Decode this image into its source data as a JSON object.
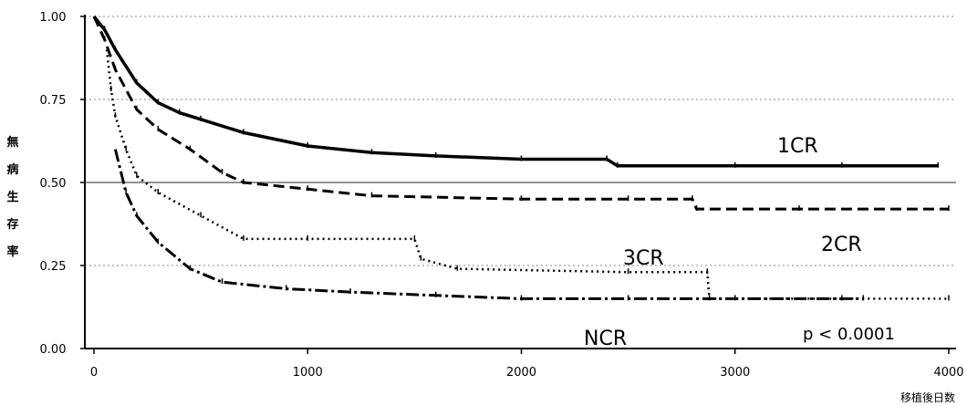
{
  "chart_data": {
    "type": "line",
    "ylabel": "無病生存率",
    "xlabel": "移植後日数",
    "xlim": [
      0,
      4000
    ],
    "ylim": [
      0,
      1
    ],
    "x_ticks": [
      "0",
      "1000",
      "2000",
      "3000",
      "4000"
    ],
    "y_ticks": [
      "0.00",
      "0.25",
      "0.50",
      "0.75",
      "1.00"
    ],
    "grid": "horizontal dotted",
    "annotation": "p < 0.0001",
    "series": [
      {
        "name": "1CR",
        "style": "solid",
        "points": [
          [
            0,
            1.0
          ],
          [
            50,
            0.96
          ],
          [
            100,
            0.9
          ],
          [
            200,
            0.8
          ],
          [
            300,
            0.74
          ],
          [
            400,
            0.71
          ],
          [
            500,
            0.69
          ],
          [
            700,
            0.65
          ],
          [
            1000,
            0.61
          ],
          [
            1300,
            0.59
          ],
          [
            1600,
            0.58
          ],
          [
            2000,
            0.57
          ],
          [
            2400,
            0.57
          ],
          [
            2450,
            0.55
          ],
          [
            3000,
            0.55
          ],
          [
            3500,
            0.55
          ],
          [
            3950,
            0.55
          ]
        ]
      },
      {
        "name": "2CR",
        "style": "dashed",
        "points": [
          [
            0,
            1.0
          ],
          [
            50,
            0.93
          ],
          [
            100,
            0.84
          ],
          [
            200,
            0.72
          ],
          [
            300,
            0.66
          ],
          [
            450,
            0.6
          ],
          [
            600,
            0.53
          ],
          [
            700,
            0.5
          ],
          [
            1000,
            0.48
          ],
          [
            1300,
            0.46
          ],
          [
            2000,
            0.45
          ],
          [
            2500,
            0.45
          ],
          [
            2800,
            0.45
          ],
          [
            2820,
            0.42
          ],
          [
            3300,
            0.42
          ],
          [
            4000,
            0.42
          ]
        ]
      },
      {
        "name": "3CR",
        "style": "dotted",
        "points": [
          [
            60,
            0.9
          ],
          [
            80,
            0.78
          ],
          [
            100,
            0.7
          ],
          [
            150,
            0.6
          ],
          [
            200,
            0.52
          ],
          [
            300,
            0.47
          ],
          [
            500,
            0.4
          ],
          [
            700,
            0.33
          ],
          [
            1000,
            0.33
          ],
          [
            1500,
            0.33
          ],
          [
            1530,
            0.27
          ],
          [
            1700,
            0.24
          ],
          [
            2500,
            0.23
          ],
          [
            2870,
            0.23
          ],
          [
            2880,
            0.15
          ],
          [
            3500,
            0.15
          ],
          [
            4000,
            0.15
          ]
        ]
      },
      {
        "name": "NCR",
        "style": "dash-dot",
        "points": [
          [
            100,
            0.6
          ],
          [
            150,
            0.47
          ],
          [
            200,
            0.4
          ],
          [
            300,
            0.32
          ],
          [
            450,
            0.24
          ],
          [
            600,
            0.2
          ],
          [
            900,
            0.18
          ],
          [
            1200,
            0.17
          ],
          [
            1600,
            0.16
          ],
          [
            2000,
            0.15
          ],
          [
            2500,
            0.15
          ],
          [
            3000,
            0.15
          ],
          [
            3600,
            0.15
          ]
        ]
      }
    ]
  }
}
